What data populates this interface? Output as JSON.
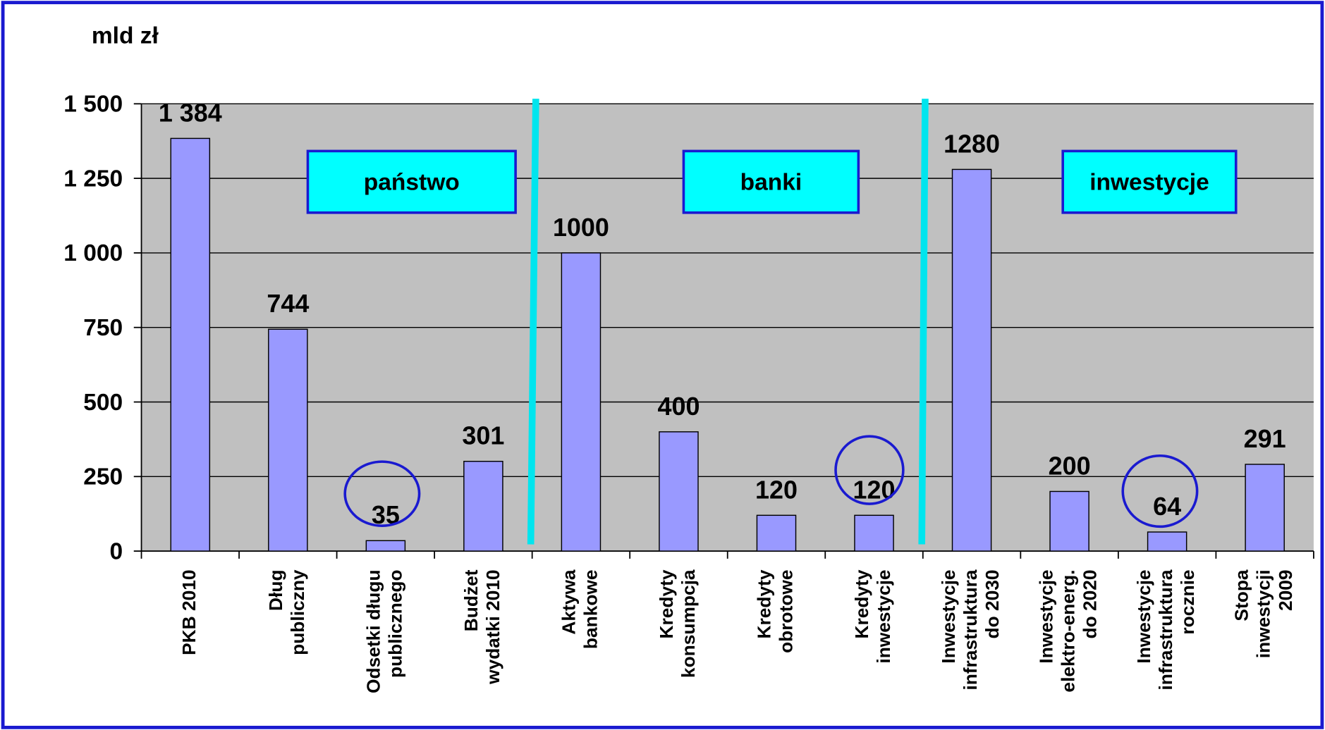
{
  "chart_data": {
    "type": "bar",
    "y_label": "mld zł",
    "categories": [
      "PKB  2010",
      "Dług\npubliczny",
      "Odsetki długu\npublicznego",
      "Budżet\nwydatki 2010",
      "Aktywa\nbankowe",
      "Kredyty\nkonsumpcja",
      "Kredyty\nobrotowe",
      "Kredyty\ninwestycje",
      "Inwestycje\ninfrastruktura\ndo 2030",
      "Inwestycje\nelektro-energ.\ndo 2020",
      "Inwestycje\ninfrastruktura\nrocznie",
      "Stopa\ninwestycji\n2009"
    ],
    "values": [
      1384,
      744,
      35,
      301,
      1000,
      400,
      120,
      120,
      1280,
      200,
      64,
      291
    ],
    "value_labels": [
      "1 384",
      "744",
      "35",
      "301",
      "1000",
      "400",
      "120",
      "120",
      "1280",
      "200",
      "64",
      "291"
    ],
    "color": "#9999ff",
    "ylim": [
      0,
      1500
    ],
    "yticks": [
      0,
      250,
      500,
      750,
      {
        "value": 1000,
        "label": "1 000"
      },
      {
        "value": 1250,
        "label": "1 250"
      },
      {
        "value": 1500,
        "label": "1 500"
      }
    ],
    "grid": true,
    "annotations": [
      "państwo",
      "banki",
      "inwestycje"
    ]
  }
}
